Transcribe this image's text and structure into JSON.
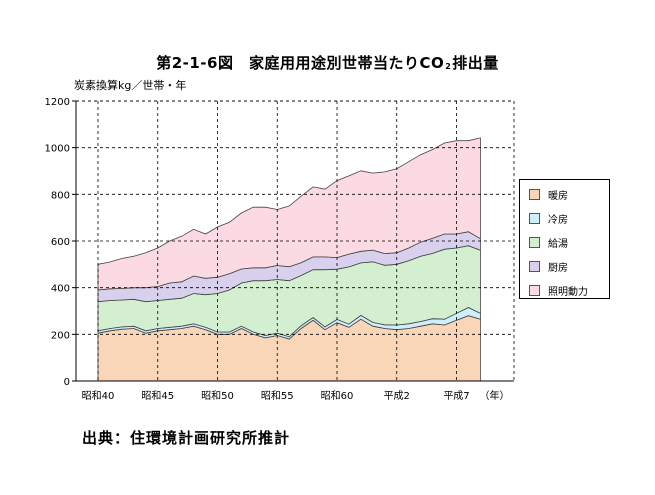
{
  "title": {
    "main": "第2-1-6図　家庭用用途別世帯当たりCO",
    "subscript": "2",
    "suffix": "排出量"
  },
  "unit_label": "炭素換算kg／世帯・年",
  "source": "出典：住環境計画研究所推計",
  "chart_data": {
    "type": "area",
    "stacked": true,
    "ylim": [
      0,
      1200
    ],
    "yticks": [
      0,
      200,
      400,
      600,
      800,
      1000,
      1200
    ],
    "grid": true,
    "legend_position": "right",
    "x_unit": "（年）",
    "x": [
      "昭和40",
      "昭和41",
      "昭和42",
      "昭和43",
      "昭和44",
      "昭和45",
      "昭和46",
      "昭和47",
      "昭和48",
      "昭和49",
      "昭和50",
      "昭和51",
      "昭和52",
      "昭和53",
      "昭和54",
      "昭和55",
      "昭和56",
      "昭和57",
      "昭和58",
      "昭和59",
      "昭和60",
      "昭和61",
      "昭和62",
      "昭和63",
      "平成元",
      "平成2",
      "平成3",
      "平成4",
      "平成5",
      "平成6",
      "平成7",
      "平成8",
      "平成9"
    ],
    "x_tick_labels": [
      "昭和40",
      "昭和45",
      "昭和50",
      "昭和55",
      "昭和60",
      "平成2",
      "平成7"
    ],
    "x_tick_positions": [
      0,
      5,
      10,
      15,
      20,
      25,
      30
    ],
    "legend_order": [
      "暖房",
      "冷房",
      "給湯",
      "厨房",
      "照明動力"
    ],
    "series": [
      {
        "name": "暖房",
        "color": "#f9d6b8",
        "values": [
          205,
          215,
          222,
          225,
          205,
          215,
          220,
          225,
          235,
          220,
          200,
          200,
          225,
          200,
          185,
          195,
          180,
          225,
          260,
          220,
          250,
          230,
          265,
          235,
          225,
          220,
          225,
          235,
          245,
          240,
          260,
          280,
          265
        ]
      },
      {
        "name": "冷房",
        "color": "#cdeffb",
        "values": [
          10,
          10,
          10,
          10,
          10,
          10,
          10,
          10,
          10,
          10,
          10,
          10,
          10,
          10,
          10,
          10,
          10,
          12,
          12,
          12,
          14,
          14,
          16,
          16,
          16,
          20,
          20,
          20,
          22,
          25,
          30,
          35,
          25
        ]
      },
      {
        "name": "給湯",
        "color": "#d3efd0",
        "values": [
          125,
          120,
          115,
          115,
          125,
          120,
          120,
          120,
          130,
          140,
          165,
          180,
          185,
          220,
          235,
          230,
          240,
          215,
          205,
          245,
          215,
          245,
          225,
          260,
          255,
          260,
          270,
          280,
          280,
          300,
          280,
          265,
          270
        ]
      },
      {
        "name": "厨房",
        "color": "#d8d0ec",
        "values": [
          50,
          50,
          50,
          50,
          60,
          60,
          70,
          70,
          75,
          70,
          70,
          70,
          60,
          55,
          55,
          60,
          60,
          55,
          55,
          55,
          50,
          55,
          50,
          50,
          50,
          50,
          55,
          60,
          65,
          65,
          60,
          60,
          50
        ]
      },
      {
        "name": "照明動力",
        "color": "#fcdae3",
        "values": [
          110,
          115,
          128,
          135,
          150,
          165,
          180,
          195,
          200,
          190,
          215,
          220,
          240,
          260,
          260,
          240,
          260,
          285,
          300,
          290,
          330,
          335,
          345,
          330,
          350,
          360,
          370,
          375,
          380,
          390,
          400,
          390,
          432
        ]
      }
    ]
  }
}
